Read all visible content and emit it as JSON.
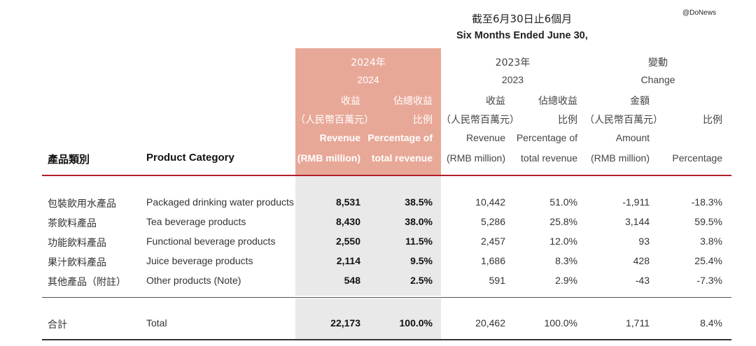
{
  "watermark": "@DoNews",
  "title": {
    "cn": "截至6月30日止6個月",
    "en": "Six Months Ended June 30,"
  },
  "headers": {
    "year_2024": {
      "cn": "2024年",
      "en": "2024"
    },
    "year_2023": {
      "cn": "2023年",
      "en": "2023"
    },
    "change": {
      "cn": "變動",
      "en": "Change"
    },
    "revenue": {
      "cn": "收益",
      "cn_unit": "（人民幣百萬元）",
      "en": "Revenue",
      "en_unit": "(RMB million)"
    },
    "pct_total": {
      "cn": "佔總收益",
      "cn2": "比例",
      "en": "Percentage of",
      "en2": "total revenue"
    },
    "amount": {
      "cn": "金額",
      "cn_unit": "（人民幣百萬元）",
      "en": "Amount",
      "en_unit": "(RMB million)"
    },
    "pct_change": {
      "cn": "比例",
      "en": "Percentage"
    },
    "category_cn": "產品類別",
    "category_en": "Product Category"
  },
  "rows": [
    {
      "cn": "包裝飲用水產品",
      "en": "Packaged drinking water products",
      "rev24": "8,531",
      "pct24": "38.5%",
      "rev23": "10,442",
      "pct23": "51.0%",
      "amt": "-1,911",
      "chg": "-18.3%"
    },
    {
      "cn": "茶飲料產品",
      "en": "Tea beverage products",
      "rev24": "8,430",
      "pct24": "38.0%",
      "rev23": "5,286",
      "pct23": "25.8%",
      "amt": "3,144",
      "chg": "59.5%"
    },
    {
      "cn": "功能飲料產品",
      "en": "Functional beverage products",
      "rev24": "2,550",
      "pct24": "11.5%",
      "rev23": "2,457",
      "pct23": "12.0%",
      "amt": "93",
      "chg": "3.8%"
    },
    {
      "cn": "果汁飲料產品",
      "en": "Juice beverage products",
      "rev24": "2,114",
      "pct24": "9.5%",
      "rev23": "1,686",
      "pct23": "8.3%",
      "amt": "428",
      "chg": "25.4%"
    },
    {
      "cn": "其他產品（附註）",
      "en": "Other products (Note)",
      "rev24": "548",
      "pct24": "2.5%",
      "rev23": "591",
      "pct23": "2.9%",
      "amt": "-43",
      "chg": "-7.3%"
    }
  ],
  "total": {
    "cn": "合計",
    "en": "Total",
    "rev24": "22,173",
    "pct24": "100.0%",
    "rev23": "20,462",
    "pct23": "100.0%",
    "amt": "1,711",
    "chg": "8.4%"
  }
}
